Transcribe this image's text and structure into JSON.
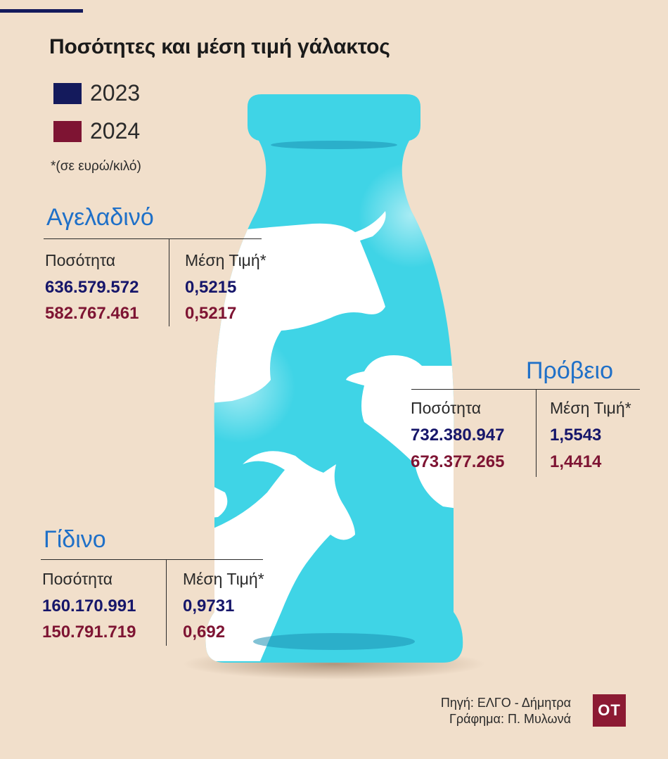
{
  "title": "Ποσότητες και μέση τιμή γάλακτος",
  "legend": [
    {
      "label": "2023",
      "color": "#141a5c"
    },
    {
      "label": "2024",
      "color": "#7e1433"
    }
  ],
  "unit_note": "*(σε ευρώ/κιλό)",
  "chart_data": {
    "type": "table",
    "title": "Ποσότητες και μέση τιμή γάλακτος",
    "columns": [
      "Ποσότητα",
      "Μέση Τιμή*"
    ],
    "series": [
      "2023",
      "2024"
    ],
    "groups": [
      {
        "name": "Αγελαδινό",
        "headers": [
          "Ποσότητα",
          "Μέση Τιμή*"
        ],
        "rows": [
          {
            "year": "2023",
            "quantity": "636.579.572",
            "price": "0,5215"
          },
          {
            "year": "2024",
            "quantity": "582.767.461",
            "price": "0,5217"
          }
        ]
      },
      {
        "name": "Πρόβειο",
        "headers": [
          "Ποσότητα",
          "Μέση Τιμή*"
        ],
        "rows": [
          {
            "year": "2023",
            "quantity": "732.380.947",
            "price": "1,5543"
          },
          {
            "year": "2024",
            "quantity": "673.377.265",
            "price": "1,4414"
          }
        ]
      },
      {
        "name": "Γίδινο",
        "headers": [
          "Ποσότητα",
          "Μέση Τιμή*"
        ],
        "rows": [
          {
            "year": "2023",
            "quantity": "160.170.991",
            "price": "0,9731"
          },
          {
            "year": "2024",
            "quantity": "150.791.719",
            "price": "0,692"
          }
        ]
      }
    ]
  },
  "source": {
    "line1": "Πηγή: ΕΛΓΟ - Δήμητρα",
    "line2": "Γράφημα: Π. Μυλωνά"
  },
  "logo": "OT",
  "colors": {
    "background": "#f1dfcb",
    "bottle": "#3fd4e6",
    "heading": "#1f70c8",
    "y2023": "#16166a",
    "y2024": "#7e1433",
    "logo_bg": "#8c1a33"
  }
}
